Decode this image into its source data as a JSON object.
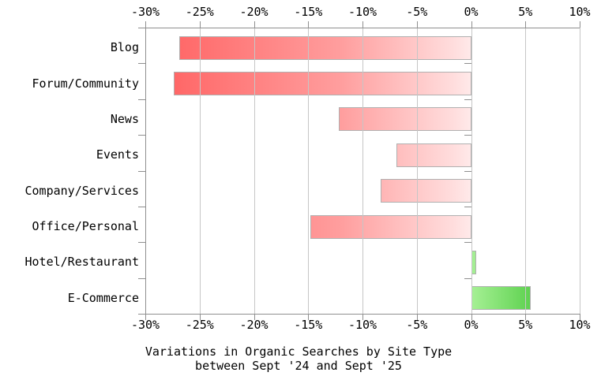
{
  "figure": {
    "background": "#ffffff",
    "caption_line1": "Variations in Organic Searches by Site Type",
    "caption_line2": "between Sept '24 and Sept '25"
  },
  "chart_data": {
    "type": "bar",
    "orientation": "horizontal",
    "title": "Variations in Organic Searches by Site Type between Sept '24 and Sept '25",
    "xlabel": "",
    "ylabel": "",
    "categories": [
      "Blog",
      "Forum/Community",
      "News",
      "Events",
      "Company/Services",
      "Office/Personal",
      "Hotel/Restaurant",
      "E-Commerce"
    ],
    "values": [
      -26.9,
      -27.4,
      -12.2,
      -6.9,
      -8.3,
      -14.8,
      0.5,
      5.5
    ],
    "units": "percent",
    "xlim": [
      -30,
      10
    ],
    "x_ticks": [
      -30,
      -25,
      -20,
      -15,
      -10,
      -5,
      0,
      5,
      10
    ],
    "x_tick_labels": [
      "-30%",
      "-25%",
      "-20%",
      "-15%",
      "-10%",
      "-5%",
      "0%",
      "5%",
      "10%"
    ],
    "grid": true,
    "legend": "none",
    "colors": {
      "negative_gradient_stops": [
        [
          "#ff5a5a",
          "0%"
        ],
        [
          "#ff6b6b",
          "12%"
        ],
        [
          "#ff9e9e",
          "60%"
        ],
        [
          "#ffdede",
          "95%"
        ],
        [
          "#ffeaea",
          "100%"
        ]
      ],
      "positive_gradient_stops": [
        [
          "#a6f095",
          "0%"
        ],
        [
          "#5fd250",
          "54%"
        ],
        [
          "#16b40a",
          "100%"
        ]
      ],
      "bar_border": "#b0b0b0",
      "grid_color": "#c6c6c6",
      "axis_color": "#8f8f8f",
      "text_color": "#000000",
      "background": "#ffffff"
    }
  }
}
